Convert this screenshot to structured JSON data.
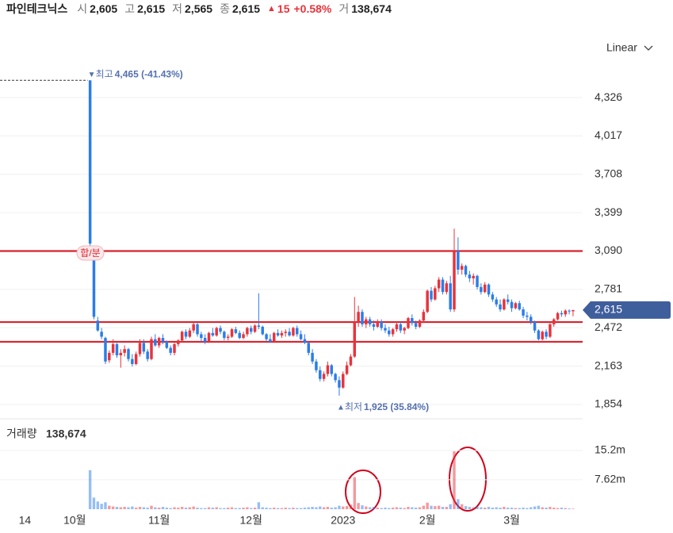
{
  "header": {
    "name": "파인테크닉스",
    "open_label": "시",
    "open": "2,605",
    "high_label": "고",
    "high": "2,615",
    "low_label": "저",
    "low": "2,565",
    "close_label": "종",
    "close": "2,615",
    "change": "15",
    "change_pct": "+0.58%",
    "volume_label": "거",
    "volume": "138,674"
  },
  "chart_data": {
    "type": "candlestick",
    "scale_label": "Linear",
    "split_marker": "합/분",
    "high_annotation": {
      "label": "최고",
      "text": "4,465 (-41.43%)"
    },
    "low_annotation": {
      "label": "최저",
      "text": "1,925 (35.84%)"
    },
    "volume_label": "거래량",
    "volume_value": "138,674",
    "up_color": "#e8333b",
    "down_color": "#2b7de9",
    "level_color": "#d9232d",
    "levels": [
      3090,
      2518,
      2359
    ],
    "current_price": {
      "value": 2615,
      "label": "2,615"
    },
    "ylim": [
      1758,
      4633
    ],
    "yticks": [
      {
        "value": 1854,
        "label": "1,854"
      },
      {
        "value": 2163,
        "label": "2,163"
      },
      {
        "value": 2472,
        "label": "2,472"
      },
      {
        "value": 2781,
        "label": "2,781"
      },
      {
        "value": 3090,
        "label": "3,090"
      },
      {
        "value": 3399,
        "label": "3,399"
      },
      {
        "value": 3708,
        "label": "3,708"
      },
      {
        "value": 4017,
        "label": "4,017"
      },
      {
        "value": 4326,
        "label": "4,326"
      }
    ],
    "vlim": [
      0,
      23000000
    ],
    "vticks": [
      {
        "value": 7620000,
        "label": "7.62m"
      },
      {
        "value": 15200000,
        "label": "15.2m"
      }
    ],
    "categories": [
      null,
      null,
      null,
      null,
      null,
      null,
      "14",
      null,
      null,
      null,
      null,
      null,
      null,
      null,
      null,
      null,
      null,
      null,
      null,
      "10월",
      null,
      null,
      null,
      null,
      null,
      null,
      null,
      null,
      null,
      null,
      null,
      null,
      null,
      null,
      null,
      null,
      null,
      null,
      null,
      null,
      null,
      "11월",
      null,
      null,
      null,
      null,
      null,
      null,
      null,
      null,
      null,
      null,
      null,
      null,
      null,
      null,
      null,
      null,
      null,
      null,
      null,
      null,
      null,
      null,
      null,
      "12월",
      null,
      null,
      null,
      null,
      null,
      null,
      null,
      null,
      null,
      null,
      null,
      null,
      null,
      null,
      null,
      null,
      null,
      null,
      null,
      null,
      null,
      null,
      null,
      "2023",
      null,
      null,
      null,
      null,
      null,
      null,
      null,
      null,
      null,
      null,
      null,
      null,
      null,
      null,
      null,
      null,
      null,
      null,
      null,
      null,
      null,
      "2월",
      null,
      null,
      null,
      null,
      null,
      null,
      null,
      null,
      null,
      null,
      null,
      null,
      null,
      null,
      null,
      null,
      null,
      null,
      null,
      null,
      null,
      "3월",
      null,
      null,
      null,
      null,
      null,
      null,
      null,
      null,
      null,
      null,
      null,
      null,
      null,
      null,
      null,
      null,
      null,
      null
    ],
    "ohlc": [
      null,
      null,
      null,
      null,
      null,
      null,
      null,
      null,
      null,
      null,
      null,
      null,
      null,
      null,
      null,
      null,
      null,
      null,
      null,
      null,
      null,
      null,
      null,
      [
        4465,
        4465,
        3130,
        3150
      ],
      [
        3020,
        3050,
        2540,
        2560
      ],
      [
        2530,
        2560,
        2440,
        2450
      ],
      [
        2440,
        2470,
        2380,
        2400
      ],
      [
        2390,
        2400,
        2180,
        2200
      ],
      [
        2210,
        2290,
        2190,
        2270
      ],
      [
        2270,
        2380,
        2250,
        2340
      ],
      [
        2340,
        2350,
        2230,
        2250
      ],
      [
        2250,
        2300,
        2150,
        2270
      ],
      [
        2270,
        2330,
        2240,
        2300
      ],
      [
        2300,
        2310,
        2200,
        2220
      ],
      [
        2220,
        2260,
        2160,
        2180
      ],
      [
        2180,
        2280,
        2170,
        2260
      ],
      [
        2260,
        2380,
        2240,
        2350
      ],
      [
        2350,
        2380,
        2260,
        2280
      ],
      [
        2280,
        2300,
        2200,
        2220
      ],
      [
        2220,
        2400,
        2210,
        2380
      ],
      [
        2380,
        2420,
        2320,
        2330
      ],
      [
        2330,
        2400,
        2310,
        2390
      ],
      [
        2390,
        2420,
        2340,
        2360
      ],
      [
        2360,
        2370,
        2300,
        2310
      ],
      [
        2310,
        2330,
        2250,
        2270
      ],
      [
        2270,
        2350,
        2250,
        2340
      ],
      [
        2340,
        2380,
        2320,
        2370
      ],
      [
        2370,
        2450,
        2360,
        2440
      ],
      [
        2440,
        2460,
        2380,
        2400
      ],
      [
        2400,
        2470,
        2390,
        2450
      ],
      [
        2450,
        2520,
        2430,
        2500
      ],
      [
        2500,
        2510,
        2400,
        2420
      ],
      [
        2420,
        2440,
        2360,
        2390
      ],
      [
        2390,
        2420,
        2340,
        2360
      ],
      [
        2360,
        2440,
        2350,
        2430
      ],
      [
        2430,
        2470,
        2400,
        2410
      ],
      [
        2410,
        2480,
        2400,
        2470
      ],
      [
        2470,
        2490,
        2420,
        2440
      ],
      [
        2440,
        2450,
        2370,
        2390
      ],
      [
        2390,
        2420,
        2370,
        2400
      ],
      [
        2400,
        2470,
        2390,
        2460
      ],
      [
        2460,
        2480,
        2420,
        2430
      ],
      [
        2430,
        2450,
        2380,
        2390
      ],
      [
        2390,
        2440,
        2380,
        2420
      ],
      [
        2420,
        2480,
        2400,
        2470
      ],
      [
        2470,
        2490,
        2420,
        2440
      ],
      [
        2440,
        2500,
        2430,
        2490
      ],
      [
        2490,
        2750,
        2460,
        2480
      ],
      [
        2480,
        2490,
        2410,
        2420
      ],
      [
        2420,
        2430,
        2360,
        2380
      ],
      [
        2380,
        2420,
        2350,
        2360
      ],
      [
        2360,
        2440,
        2350,
        2430
      ],
      [
        2430,
        2460,
        2400,
        2410
      ],
      [
        2410,
        2450,
        2390,
        2430
      ],
      [
        2430,
        2460,
        2400,
        2440
      ],
      [
        2440,
        2470,
        2400,
        2410
      ],
      [
        2410,
        2480,
        2400,
        2470
      ],
      [
        2470,
        2490,
        2400,
        2420
      ],
      [
        2420,
        2450,
        2370,
        2380
      ],
      [
        2380,
        2420,
        2340,
        2350
      ],
      [
        2350,
        2360,
        2250,
        2270
      ],
      [
        2270,
        2300,
        2180,
        2200
      ],
      [
        2200,
        2220,
        2110,
        2130
      ],
      [
        2130,
        2160,
        2040,
        2060
      ],
      [
        2060,
        2120,
        2040,
        2100
      ],
      [
        2100,
        2200,
        2080,
        2170
      ],
      [
        2170,
        2180,
        2080,
        2100
      ],
      [
        2100,
        2110,
        2030,
        2050
      ],
      [
        2050,
        2080,
        1925,
        1990
      ],
      [
        1990,
        2120,
        1980,
        2100
      ],
      [
        2100,
        2200,
        2090,
        2170
      ],
      [
        2170,
        2260,
        2160,
        2240
      ],
      [
        2240,
        2720,
        2230,
        2520
      ],
      [
        2520,
        2650,
        2480,
        2600
      ],
      [
        2600,
        2620,
        2480,
        2500
      ],
      [
        2500,
        2560,
        2470,
        2540
      ],
      [
        2540,
        2560,
        2480,
        2500
      ],
      [
        2500,
        2530,
        2450,
        2480
      ],
      [
        2480,
        2540,
        2470,
        2520
      ],
      [
        2520,
        2540,
        2450,
        2470
      ],
      [
        2470,
        2500,
        2430,
        2450
      ],
      [
        2450,
        2480,
        2400,
        2420
      ],
      [
        2420,
        2470,
        2400,
        2460
      ],
      [
        2460,
        2520,
        2440,
        2500
      ],
      [
        2500,
        2520,
        2430,
        2450
      ],
      [
        2450,
        2480,
        2420,
        2470
      ],
      [
        2470,
        2560,
        2460,
        2550
      ],
      [
        2550,
        2580,
        2490,
        2510
      ],
      [
        2510,
        2530,
        2460,
        2480
      ],
      [
        2480,
        2540,
        2470,
        2530
      ],
      [
        2530,
        2620,
        2510,
        2600
      ],
      [
        2600,
        2780,
        2590,
        2770
      ],
      [
        2770,
        2800,
        2680,
        2700
      ],
      [
        2700,
        2810,
        2690,
        2790
      ],
      [
        2790,
        2880,
        2760,
        2860
      ],
      [
        2860,
        2880,
        2740,
        2760
      ],
      [
        2760,
        2850,
        2740,
        2830
      ],
      [
        2830,
        2890,
        2600,
        2620
      ],
      [
        2620,
        3270,
        2600,
        3090
      ],
      [
        3090,
        3200,
        2900,
        2940
      ],
      [
        2940,
        2990,
        2900,
        2970
      ],
      [
        2970,
        2980,
        2880,
        2900
      ],
      [
        2900,
        2930,
        2840,
        2870
      ],
      [
        2870,
        2910,
        2820,
        2890
      ],
      [
        2890,
        2900,
        2780,
        2800
      ],
      [
        2800,
        2830,
        2740,
        2760
      ],
      [
        2760,
        2840,
        2750,
        2820
      ],
      [
        2820,
        2830,
        2720,
        2740
      ],
      [
        2740,
        2760,
        2680,
        2700
      ],
      [
        2700,
        2720,
        2640,
        2660
      ],
      [
        2660,
        2700,
        2600,
        2620
      ],
      [
        2620,
        2710,
        2610,
        2700
      ],
      [
        2700,
        2740,
        2660,
        2680
      ],
      [
        2680,
        2700,
        2600,
        2630
      ],
      [
        2630,
        2680,
        2620,
        2670
      ],
      [
        2670,
        2690,
        2610,
        2620
      ],
      [
        2620,
        2640,
        2550,
        2570
      ],
      [
        2570,
        2600,
        2530,
        2560
      ],
      [
        2560,
        2580,
        2500,
        2520
      ],
      [
        2520,
        2530,
        2430,
        2450
      ],
      [
        2450,
        2460,
        2370,
        2380
      ],
      [
        2380,
        2450,
        2370,
        2440
      ],
      [
        2440,
        2460,
        2380,
        2400
      ],
      [
        2400,
        2510,
        2390,
        2500
      ],
      [
        2500,
        2550,
        2480,
        2540
      ],
      [
        2540,
        2600,
        2530,
        2590
      ],
      [
        2590,
        2610,
        2560,
        2580
      ],
      [
        2580,
        2620,
        2560,
        2610
      ],
      [
        2610,
        2620,
        2580,
        2605
      ],
      [
        2605,
        2615,
        2565,
        2615
      ],
      null,
      null
    ],
    "volume": [
      null,
      null,
      null,
      null,
      null,
      null,
      null,
      null,
      null,
      null,
      null,
      null,
      null,
      null,
      null,
      null,
      null,
      null,
      null,
      null,
      null,
      null,
      null,
      10100000,
      3000000,
      2000000,
      1400000,
      1800000,
      900000,
      700000,
      600000,
      500000,
      600000,
      500000,
      700000,
      400000,
      600000,
      500000,
      400000,
      900000,
      500000,
      400000,
      600000,
      400000,
      300000,
      500000,
      400000,
      600000,
      400000,
      500000,
      700000,
      400000,
      300000,
      300000,
      500000,
      400000,
      500000,
      300000,
      300000,
      400000,
      500000,
      300000,
      300000,
      400000,
      500000,
      300000,
      400000,
      1800000,
      500000,
      400000,
      300000,
      400000,
      300000,
      300000,
      400000,
      300000,
      400000,
      300000,
      300000,
      400000,
      500000,
      600000,
      500000,
      700000,
      500000,
      600000,
      400000,
      500000,
      900000,
      700000,
      800000,
      1200000,
      8300000,
      1600000,
      1000000,
      700000,
      500000,
      600000,
      400000,
      300000,
      400000,
      300000,
      400000,
      500000,
      400000,
      300000,
      600000,
      500000,
      400000,
      500000,
      900000,
      1700000,
      900000,
      800000,
      900000,
      600000,
      600000,
      1300000,
      15000000,
      2600000,
      1300000,
      800000,
      600000,
      500000,
      700000,
      500000,
      400000,
      600000,
      400000,
      500000,
      400000,
      600000,
      400000,
      400000,
      300000,
      300000,
      400000,
      300000,
      500000,
      700000,
      900000,
      500000,
      400000,
      600000,
      400000,
      300000,
      400000,
      300000,
      200000,
      138674,
      null,
      null
    ]
  }
}
